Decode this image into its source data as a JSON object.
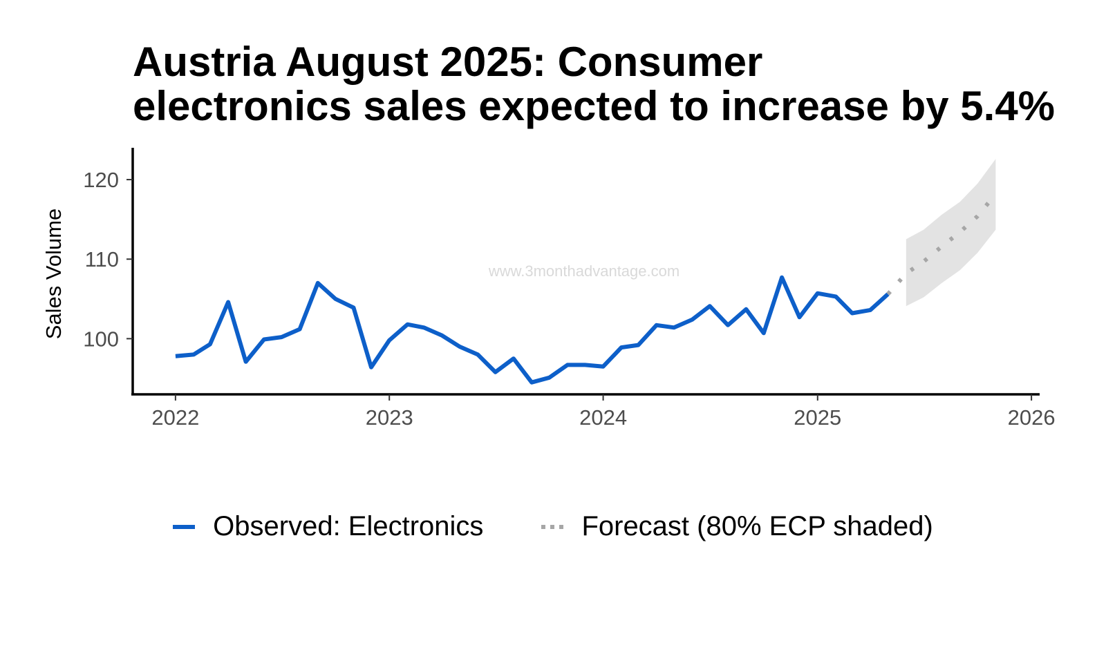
{
  "title_lines": [
    "Austria August 2025: Consumer",
    "electronics sales expected to increase by 5.4%"
  ],
  "watermark": "www.3monthadvantage.com",
  "colors": {
    "observed": "#0d5fc9",
    "forecast": "#a6a6a6",
    "band": "#e3e3e3",
    "axis": "#000000"
  },
  "legend": {
    "observed_label": "Observed: Electronics",
    "forecast_label": "Forecast (80% ECP shaded)"
  },
  "chart_data": {
    "type": "line",
    "title": "Austria August 2025: Consumer electronics sales expected to increase by 5.4%",
    "xlabel": "",
    "ylabel": "Sales Volume",
    "x_ticks": [
      "2022",
      "2023",
      "2024",
      "2025",
      "2026"
    ],
    "y_ticks": [
      100,
      110,
      120
    ],
    "xlim": [
      "2021-10-20",
      "2026-01-15"
    ],
    "ylim": [
      93,
      124
    ],
    "grid": false,
    "legend_position": "bottom",
    "series": [
      {
        "name": "Observed: Electronics",
        "style": "solid",
        "x": [
          "2022-01",
          "2022-02",
          "2022-03",
          "2022-04",
          "2022-05",
          "2022-06",
          "2022-07",
          "2022-08",
          "2022-09",
          "2022-10",
          "2022-11",
          "2022-12",
          "2023-01",
          "2023-02",
          "2023-03",
          "2023-04",
          "2023-05",
          "2023-06",
          "2023-07",
          "2023-08",
          "2023-09",
          "2023-10",
          "2023-11",
          "2023-12",
          "2024-01",
          "2024-02",
          "2024-03",
          "2024-04",
          "2024-05",
          "2024-06",
          "2024-07",
          "2024-08",
          "2024-09",
          "2024-10",
          "2024-11",
          "2024-12",
          "2025-01",
          "2025-02",
          "2025-03",
          "2025-04",
          "2025-05"
        ],
        "y": [
          97.8,
          98.0,
          99.3,
          104.6,
          97.1,
          99.9,
          100.2,
          101.2,
          107.0,
          105.0,
          103.9,
          96.4,
          99.8,
          101.8,
          101.4,
          100.4,
          99.0,
          98.0,
          95.8,
          97.5,
          94.5,
          95.1,
          96.7,
          96.7,
          96.5,
          98.9,
          99.2,
          101.7,
          101.4,
          102.4,
          104.1,
          101.7,
          103.7,
          100.7,
          107.7,
          102.7,
          105.7,
          105.3,
          103.2,
          103.6,
          105.6
        ]
      },
      {
        "name": "Forecast (80% ECP shaded)",
        "style": "dotted",
        "x": [
          "2025-05",
          "2025-06",
          "2025-07",
          "2025-08",
          "2025-09",
          "2025-10",
          "2025-11"
        ],
        "y": [
          105.6,
          108.2,
          109.7,
          111.6,
          113.4,
          115.4,
          118.2
        ],
        "lower": [
          null,
          104.1,
          105.2,
          107.0,
          108.6,
          110.8,
          113.7
        ],
        "upper": [
          null,
          112.5,
          113.7,
          115.6,
          117.2,
          119.5,
          122.6
        ]
      }
    ]
  }
}
